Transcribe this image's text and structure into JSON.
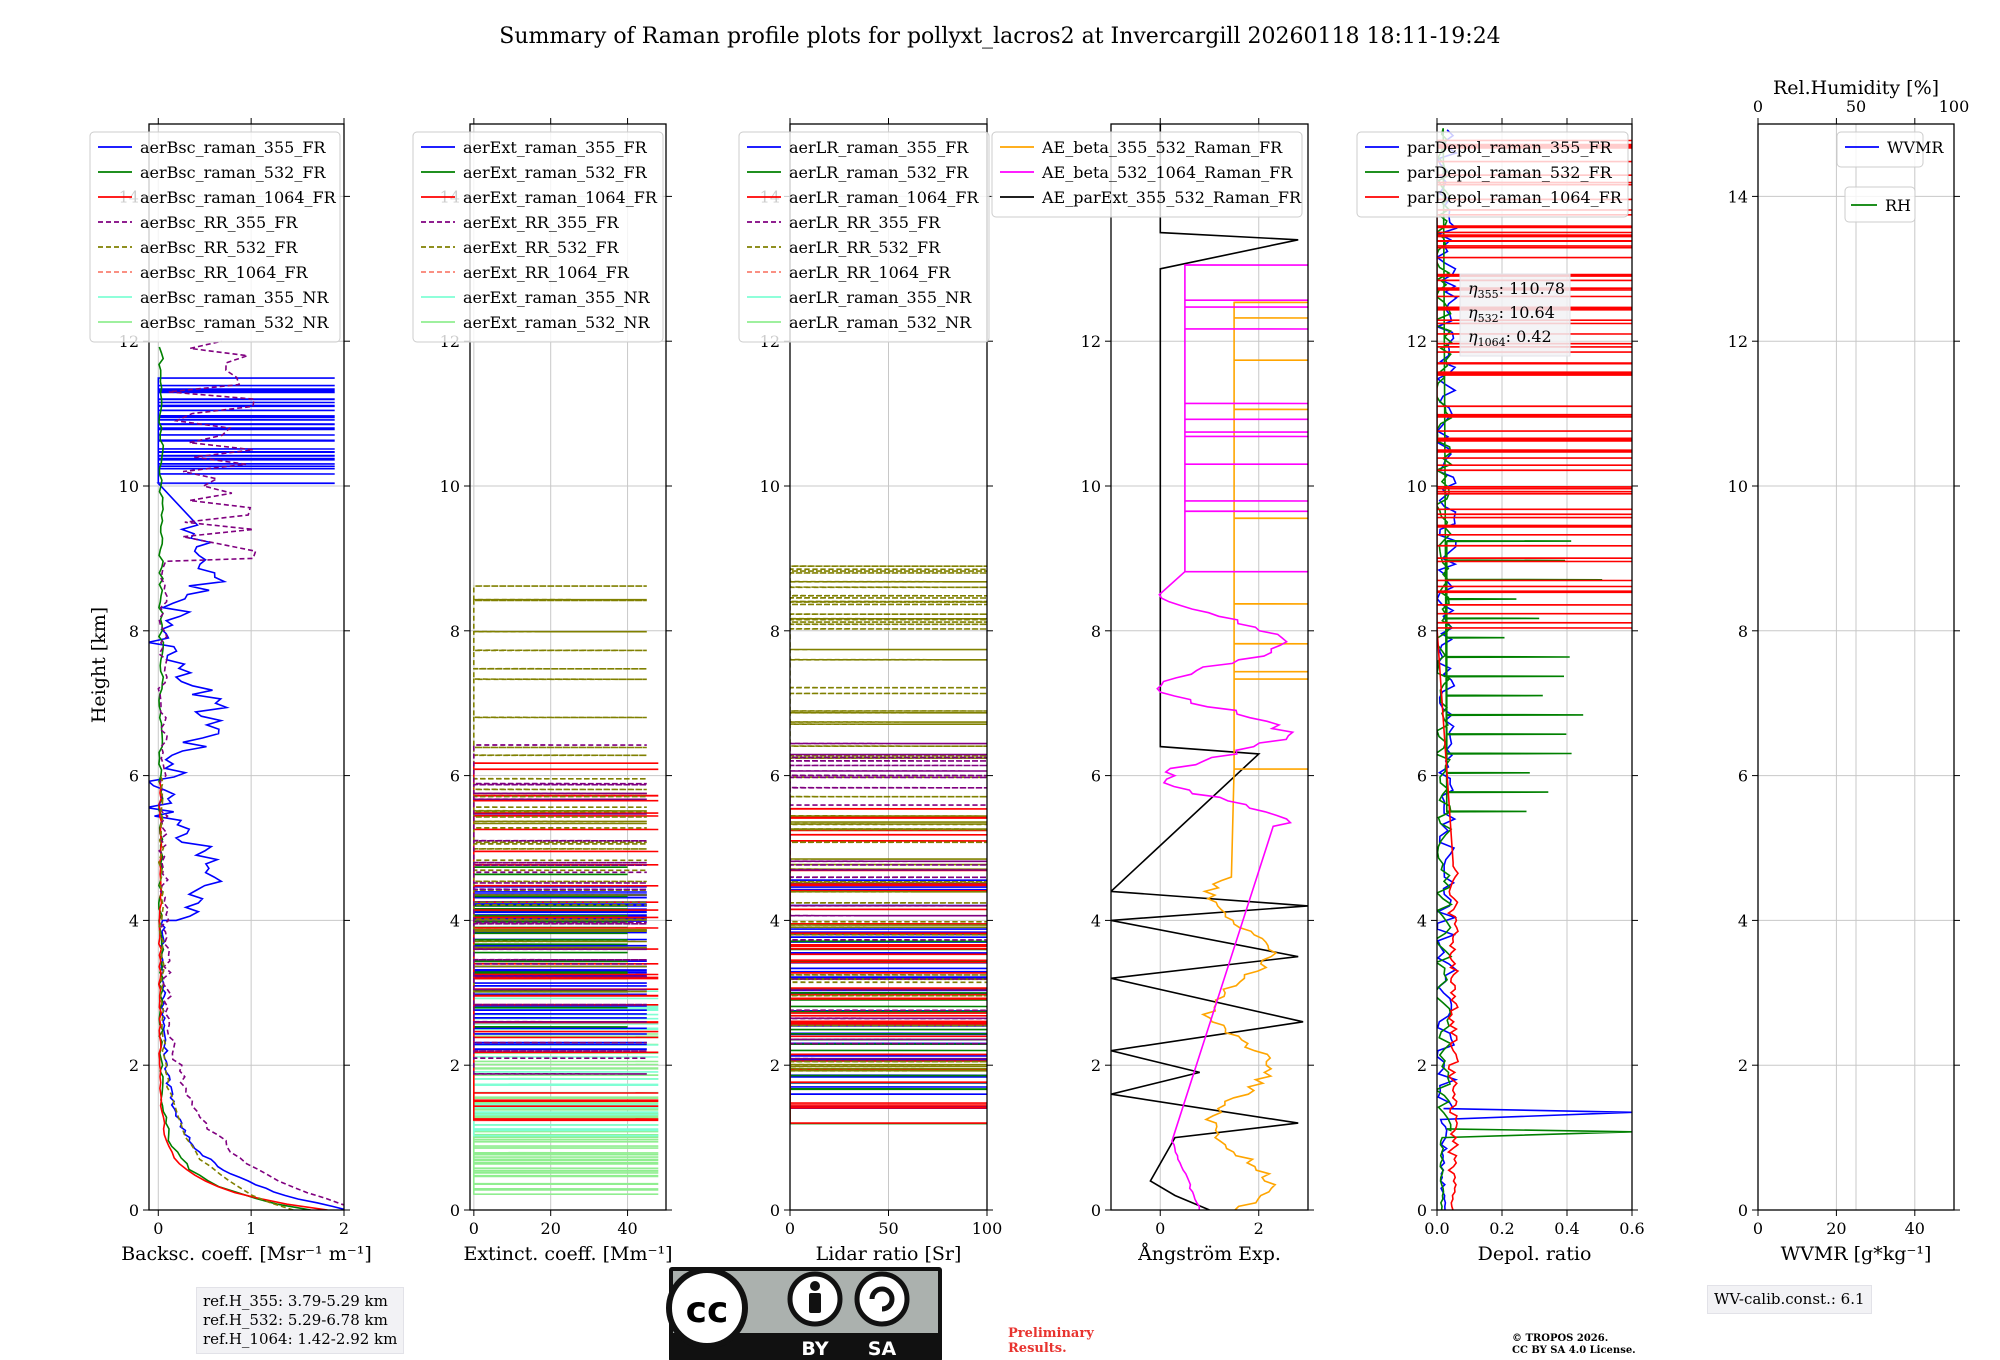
{
  "title": "Summary of Raman profile plots for pollyxt_lacros2 at Invercargill 20260118 18:11-19:24",
  "ylabel": "Height [km]",
  "colors": {
    "blue": "#0000ff",
    "green": "#008000",
    "red": "#ff0000",
    "purple": "#800080",
    "olive": "#808000",
    "salmon": "#fa8072",
    "cyan": "#7fffd4",
    "lightgreen": "#90ee90",
    "orange": "#ffa500",
    "magenta": "#ff00ff",
    "black": "#000000"
  },
  "chart_data": [
    {
      "type": "line",
      "key": "bsc",
      "xlabel": "Backsc. coeff. [Msr⁻¹ m⁻¹]",
      "xlim": [
        -0.1,
        2
      ],
      "ylim": [
        0,
        15
      ],
      "xticks": [
        0,
        1,
        2
      ],
      "xtick_labels": [
        "0",
        "1",
        "2"
      ],
      "yticks": [
        0,
        2,
        4,
        6,
        8,
        10,
        12,
        14
      ],
      "legend": [
        {
          "label": "aerBsc_raman_355_FR",
          "color": "blue",
          "dash": false
        },
        {
          "label": "aerBsc_raman_532_FR",
          "color": "green",
          "dash": false
        },
        {
          "label": "aerBsc_raman_1064_FR",
          "color": "red",
          "dash": false
        },
        {
          "label": "aerBsc_RR_355_FR",
          "color": "purple",
          "dash": true
        },
        {
          "label": "aerBsc_RR_532_FR",
          "color": "olive",
          "dash": true
        },
        {
          "label": "aerBsc_RR_1064_FR",
          "color": "salmon",
          "dash": true
        },
        {
          "label": "aerBsc_raman_355_NR",
          "color": "cyan",
          "dash": false
        },
        {
          "label": "aerBsc_raman_532_NR",
          "color": "lightgreen",
          "dash": false
        }
      ]
    },
    {
      "type": "line",
      "key": "ext",
      "xlabel": "Extinct. coeff. [Mm⁻¹]",
      "xlim": [
        -1,
        50
      ],
      "ylim": [
        0,
        15
      ],
      "xticks": [
        0,
        20,
        40
      ],
      "xtick_labels": [
        "0",
        "20",
        "40"
      ],
      "yticks": [
        0,
        2,
        4,
        6,
        8,
        10,
        12,
        14
      ],
      "legend": [
        {
          "label": "aerExt_raman_355_FR",
          "color": "blue",
          "dash": false
        },
        {
          "label": "aerExt_raman_532_FR",
          "color": "green",
          "dash": false
        },
        {
          "label": "aerExt_raman_1064_FR",
          "color": "red",
          "dash": false
        },
        {
          "label": "aerExt_RR_355_FR",
          "color": "purple",
          "dash": true
        },
        {
          "label": "aerExt_RR_532_FR",
          "color": "olive",
          "dash": true
        },
        {
          "label": "aerExt_RR_1064_FR",
          "color": "salmon",
          "dash": true
        },
        {
          "label": "aerExt_raman_355_NR",
          "color": "cyan",
          "dash": false
        },
        {
          "label": "aerExt_raman_532_NR",
          "color": "lightgreen",
          "dash": false
        }
      ]
    },
    {
      "type": "line",
      "key": "lr",
      "xlabel": "Lidar ratio [Sr]",
      "xlim": [
        0,
        100
      ],
      "ylim": [
        0,
        15
      ],
      "xticks": [
        0,
        50,
        100
      ],
      "xtick_labels": [
        "0",
        "50",
        "100"
      ],
      "yticks": [
        0,
        2,
        4,
        6,
        8,
        10,
        12,
        14
      ],
      "legend": [
        {
          "label": "aerLR_raman_355_FR",
          "color": "blue",
          "dash": false
        },
        {
          "label": "aerLR_raman_532_FR",
          "color": "green",
          "dash": false
        },
        {
          "label": "aerLR_raman_1064_FR",
          "color": "red",
          "dash": false
        },
        {
          "label": "aerLR_RR_355_FR",
          "color": "purple",
          "dash": true
        },
        {
          "label": "aerLR_RR_532_FR",
          "color": "olive",
          "dash": true
        },
        {
          "label": "aerLR_RR_1064_FR",
          "color": "salmon",
          "dash": true
        },
        {
          "label": "aerLR_raman_355_NR",
          "color": "cyan",
          "dash": false
        },
        {
          "label": "aerLR_raman_532_NR",
          "color": "lightgreen",
          "dash": false
        }
      ]
    },
    {
      "type": "line",
      "key": "ae",
      "xlabel": "Ångström Exp.",
      "xlim": [
        -1,
        3
      ],
      "ylim": [
        0,
        15
      ],
      "xticks": [
        0,
        2
      ],
      "xtick_labels": [
        "0",
        "2"
      ],
      "yticks": [
        0,
        2,
        4,
        6,
        8,
        10,
        12
      ],
      "legend": [
        {
          "label": "AE_beta_355_532_Raman_FR",
          "color": "orange",
          "dash": false
        },
        {
          "label": "AE_beta_532_1064_Raman_FR",
          "color": "magenta",
          "dash": false
        },
        {
          "label": "AE_parExt_355_532_Raman_FR",
          "color": "black",
          "dash": false
        }
      ]
    },
    {
      "type": "line",
      "key": "dep",
      "xlabel": "Depol. ratio",
      "xlim": [
        0,
        0.6
      ],
      "ylim": [
        0,
        15
      ],
      "xticks": [
        0,
        0.2,
        0.4,
        0.6
      ],
      "xtick_labels": [
        "0.0",
        "0.2",
        "0.4",
        "0.6"
      ],
      "yticks": [
        0,
        2,
        4,
        6,
        8,
        10,
        12
      ],
      "legend": [
        {
          "label": "parDepol_raman_355_FR",
          "color": "blue",
          "dash": false
        },
        {
          "label": "parDepol_raman_532_FR",
          "color": "green",
          "dash": false
        },
        {
          "label": "parDepol_raman_1064_FR",
          "color": "red",
          "dash": false
        }
      ],
      "annotation": [
        {
          "sym": "η",
          "sub": "355",
          "value": "110.78"
        },
        {
          "sym": "η",
          "sub": "532",
          "value": "10.64"
        },
        {
          "sym": "η",
          "sub": "1064",
          "value": "0.42"
        }
      ]
    },
    {
      "type": "line",
      "key": "wv",
      "xlabel": "WVMR [g*kg⁻¹]",
      "xlim": [
        0,
        50
      ],
      "ylim": [
        0,
        15
      ],
      "xticks": [
        0,
        20,
        40
      ],
      "xtick_labels": [
        "0",
        "20",
        "40"
      ],
      "yticks": [
        0,
        2,
        4,
        6,
        8,
        10,
        12,
        14
      ],
      "top_xlabel": "Rel.Humidity [%]",
      "top_xlim": [
        0,
        100
      ],
      "top_xticks": [
        0,
        50,
        100
      ],
      "top_xtick_labels": [
        "0",
        "50",
        "100"
      ],
      "legend": [
        {
          "label": "WVMR",
          "color": "blue",
          "dash": false
        }
      ],
      "legend2": [
        {
          "label": "RH",
          "color": "green",
          "dash": false
        }
      ]
    }
  ],
  "ref_heights": [
    "ref.H_355: 3.79-5.29 km",
    "ref.H_532: 5.29-6.78 km",
    "ref.H_1064: 1.42-2.92 km"
  ],
  "wv_calib": "WV-calib.const.: 6.1",
  "license_badge": {
    "cc": "cc",
    "by": "BY",
    "sa": "SA"
  },
  "preliminary": [
    "Preliminary",
    "Results."
  ],
  "copyright": [
    "© TROPOS 2026.",
    "CC BY SA 4.0 License."
  ]
}
